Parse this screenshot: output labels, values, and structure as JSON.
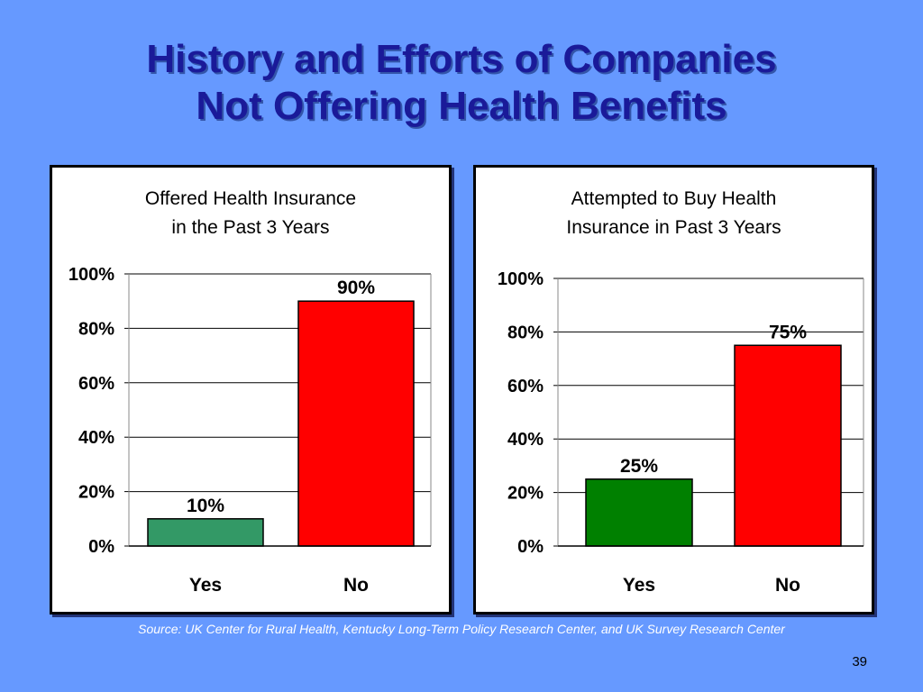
{
  "slide": {
    "title_line1": "History and Efforts of Companies",
    "title_line2": "Not Offering Health Benefits",
    "source": "Source: UK Center for Rural Health, Kentucky Long-Term Policy Research Center, and UK Survey Research Center",
    "page_number": "39"
  },
  "chart_data": [
    {
      "type": "bar",
      "title": [
        "Offered Health Insurance",
        "in the Past 3 Years"
      ],
      "categories": [
        "Yes",
        "No"
      ],
      "values": [
        10,
        90
      ],
      "data_labels": [
        "10%",
        "90%"
      ],
      "colors": [
        "#339966",
        "#ff0000"
      ],
      "ylim": [
        0,
        100
      ],
      "yticks": [
        0,
        20,
        40,
        60,
        80,
        100
      ],
      "ytick_labels": [
        "0%",
        "20%",
        "40%",
        "60%",
        "80%",
        "100%"
      ],
      "grid": true,
      "xlabel": "",
      "ylabel": ""
    },
    {
      "type": "bar",
      "title": [
        "Attempted to Buy Health",
        "Insurance in Past 3 Years"
      ],
      "categories": [
        "Yes",
        "No"
      ],
      "values": [
        25,
        75
      ],
      "data_labels": [
        "25%",
        "75%"
      ],
      "colors": [
        "#008000",
        "#ff0000"
      ],
      "ylim": [
        0,
        100
      ],
      "yticks": [
        0,
        20,
        40,
        60,
        80,
        100
      ],
      "ytick_labels": [
        "0%",
        "20%",
        "40%",
        "60%",
        "80%",
        "100%"
      ],
      "grid": true,
      "xlabel": "",
      "ylabel": ""
    }
  ]
}
